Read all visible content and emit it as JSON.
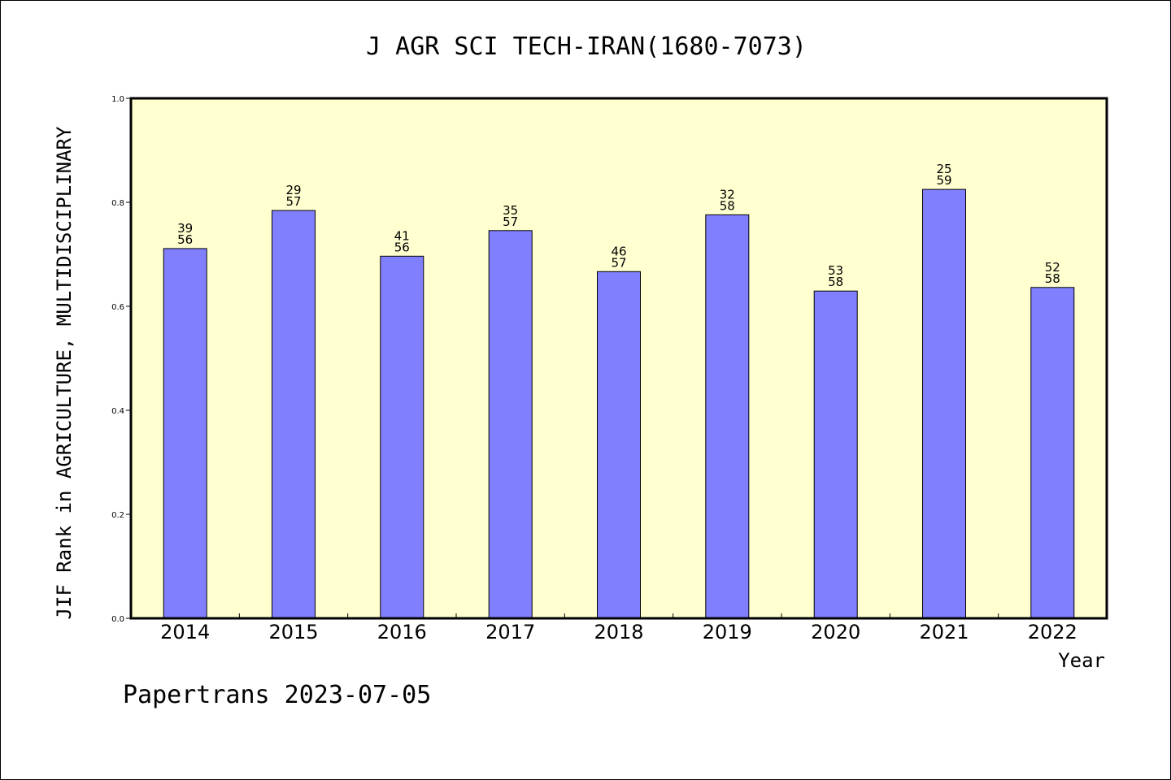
{
  "chart_data": {
    "type": "bar",
    "title": "J AGR SCI TECH-IRAN(1680-7073)",
    "xlabel": "Year",
    "ylabel": "JIF Rank in AGRICULTURE, MULTIDISCIPLINARY",
    "categories": [
      "2014",
      "2015",
      "2016",
      "2017",
      "2018",
      "2019",
      "2020",
      "2021",
      "2022"
    ],
    "values": [
      0.7111,
      0.7842,
      0.6964,
      0.7456,
      0.6667,
      0.7759,
      0.6293,
      0.8249,
      0.6362
    ],
    "rank_labels": [
      [
        "39",
        "56"
      ],
      [
        "29",
        "57"
      ],
      [
        "41",
        "56"
      ],
      [
        "35",
        "57"
      ],
      [
        "46",
        "57"
      ],
      [
        "32",
        "58"
      ],
      [
        "53",
        "58"
      ],
      [
        "25",
        "59"
      ],
      [
        "52",
        "58"
      ]
    ],
    "ylim": [
      0.0,
      1.0
    ],
    "yticks": [
      0.0,
      0.2,
      0.4,
      0.6,
      0.8,
      1.0
    ],
    "ytick_labels": [
      "0.0",
      "0.2",
      "0.4",
      "0.6",
      "0.8",
      "1.0"
    ],
    "grid": false,
    "legend": "none",
    "colors": {
      "bar": "#8080ff",
      "plot_background": "#ffffd0",
      "axis": "#000000"
    }
  },
  "footer": "Papertrans 2023-07-05"
}
